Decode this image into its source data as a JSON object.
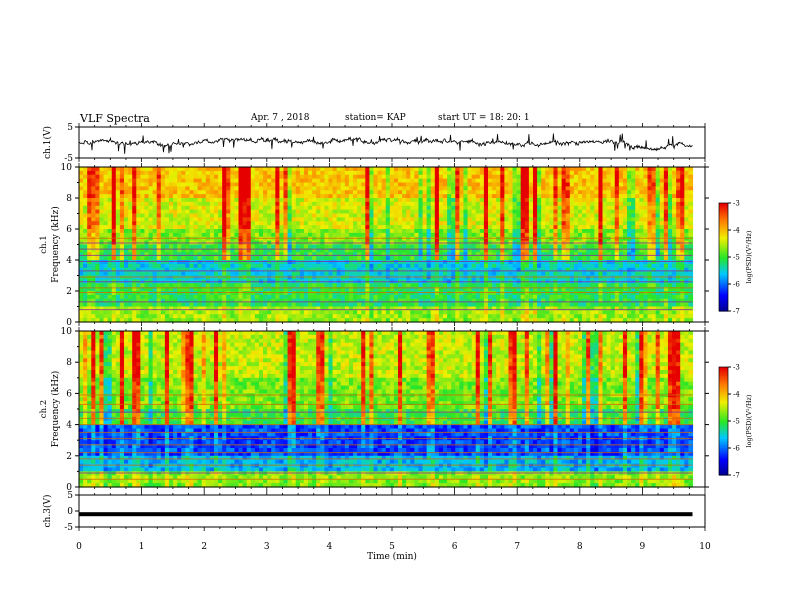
{
  "header": {
    "title": "VLF Spectra",
    "date": "Apr. 7 , 2018",
    "station": "station= KAP",
    "start": "start UT = 18: 20: 1"
  },
  "chart_data": [
    {
      "type": "line",
      "id": "ch1-waveform",
      "ylabel": "ch.1(V)",
      "ylim": [
        -5,
        5
      ],
      "yticks": [
        5,
        -5
      ],
      "xlim": [
        0,
        10
      ],
      "x_extent_min": 9.8,
      "note_values": "noisy waveform centered ~0 V, envelope approx -2 to +1 V"
    },
    {
      "type": "heatmap",
      "id": "ch1-spectrogram",
      "ylabel": "Frequency (kHz)",
      "panel_label": "ch.1",
      "ylim": [
        0,
        10
      ],
      "yticks": [
        0,
        2,
        4,
        6,
        8,
        10
      ],
      "xlim": [
        0,
        10
      ],
      "x_extent_min": 9.8,
      "colorbar": {
        "label": "log(PSD)(V²/Hz)",
        "ticks": [
          -3,
          -4,
          -5,
          -6,
          -7
        ],
        "range": [
          -7,
          -3
        ]
      }
    },
    {
      "type": "heatmap",
      "id": "ch2-spectrogram",
      "ylabel": "Frequency (kHz)",
      "panel_label": "ch.2",
      "ylim": [
        0,
        10
      ],
      "yticks": [
        0,
        2,
        4,
        6,
        8,
        10
      ],
      "xlim": [
        0,
        10
      ],
      "x_extent_min": 9.8,
      "colorbar": {
        "label": "log(PSD)(V²/Hz)",
        "ticks": [
          -3,
          -4,
          -5,
          -6,
          -7
        ],
        "range": [
          -7,
          -3
        ]
      }
    },
    {
      "type": "line",
      "id": "ch3-waveform",
      "ylabel": "ch.3(V)",
      "ylim": [
        -5,
        5
      ],
      "yticks": [
        5,
        0,
        -5
      ],
      "xlim": [
        0,
        10
      ],
      "x_extent_min": 9.8,
      "level_v": -1
    }
  ],
  "xaxis": {
    "label": "Time (min)",
    "ticks": [
      0,
      1,
      2,
      3,
      4,
      5,
      6,
      7,
      8,
      9,
      10
    ]
  },
  "colors": {
    "axis": "#000000",
    "waveform": "#000000"
  }
}
